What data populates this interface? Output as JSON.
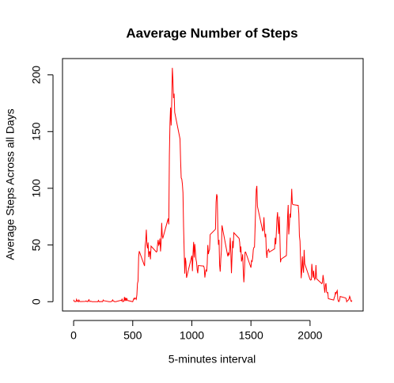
{
  "chart_data": {
    "type": "line",
    "title": "Aaverage Number of Steps",
    "x_label": "5-minutes interval",
    "y_label": "Average Steps Across all Days",
    "x": [
      0,
      5,
      10,
      15,
      20,
      25,
      30,
      35,
      40,
      45,
      50,
      55,
      100,
      105,
      110,
      115,
      120,
      125,
      130,
      135,
      140,
      145,
      150,
      155,
      200,
      205,
      210,
      215,
      220,
      225,
      230,
      235,
      240,
      245,
      250,
      255,
      300,
      305,
      310,
      315,
      320,
      325,
      330,
      335,
      340,
      345,
      350,
      355,
      400,
      405,
      410,
      415,
      420,
      425,
      430,
      435,
      440,
      445,
      450,
      455,
      500,
      505,
      510,
      515,
      520,
      525,
      530,
      535,
      540,
      545,
      550,
      555,
      600,
      605,
      610,
      615,
      620,
      625,
      630,
      635,
      640,
      645,
      650,
      655,
      700,
      705,
      710,
      715,
      720,
      725,
      730,
      735,
      740,
      745,
      750,
      755,
      800,
      805,
      810,
      815,
      820,
      825,
      830,
      835,
      840,
      845,
      850,
      855,
      900,
      905,
      910,
      915,
      920,
      925,
      930,
      935,
      940,
      945,
      950,
      955,
      1000,
      1005,
      1010,
      1015,
      1020,
      1025,
      1030,
      1035,
      1040,
      1045,
      1050,
      1055,
      1100,
      1105,
      1110,
      1115,
      1120,
      1125,
      1130,
      1135,
      1140,
      1145,
      1150,
      1155,
      1200,
      1205,
      1210,
      1215,
      1220,
      1225,
      1230,
      1235,
      1240,
      1245,
      1250,
      1255,
      1300,
      1305,
      1310,
      1315,
      1320,
      1325,
      1330,
      1335,
      1340,
      1345,
      1350,
      1355,
      1400,
      1405,
      1410,
      1415,
      1420,
      1425,
      1430,
      1435,
      1440,
      1445,
      1450,
      1455,
      1500,
      1505,
      1510,
      1515,
      1520,
      1525,
      1530,
      1535,
      1540,
      1545,
      1550,
      1555,
      1600,
      1605,
      1610,
      1615,
      1620,
      1625,
      1630,
      1635,
      1640,
      1645,
      1650,
      1655,
      1700,
      1705,
      1710,
      1715,
      1720,
      1725,
      1730,
      1735,
      1740,
      1745,
      1750,
      1755,
      1800,
      1805,
      1810,
      1815,
      1820,
      1825,
      1830,
      1835,
      1840,
      1845,
      1850,
      1855,
      1900,
      1905,
      1910,
      1915,
      1920,
      1925,
      1930,
      1935,
      1940,
      1945,
      1950,
      1955,
      2000,
      2005,
      2010,
      2015,
      2020,
      2025,
      2030,
      2035,
      2040,
      2045,
      2050,
      2055,
      2100,
      2105,
      2110,
      2115,
      2120,
      2125,
      2130,
      2135,
      2140,
      2145,
      2150,
      2155,
      2200,
      2205,
      2210,
      2215,
      2220,
      2225,
      2230,
      2235,
      2240,
      2245,
      2250,
      2255,
      2300,
      2305,
      2310,
      2315,
      2320,
      2325,
      2330,
      2335,
      2340,
      2345,
      2350,
      2355
    ],
    "series": [
      {
        "color": "#ff0000",
        "values": [
          1.7,
          0.3,
          0.1,
          0.2,
          0.1,
          2.1,
          0.5,
          0.9,
          0,
          1.5,
          0.3,
          0.1,
          0.3,
          0.7,
          0.2,
          0.3,
          0,
          1.1,
          1.8,
          0.2,
          0.2,
          0.4,
          0.3,
          0,
          0,
          0,
          1.1,
          0,
          0,
          0.1,
          0,
          0.2,
          0,
          0,
          1.5,
          0.9,
          0,
          0,
          0,
          0,
          0.2,
          0.6,
          1.6,
          0.6,
          0.5,
          0.1,
          0,
          0,
          1.2,
          0.9,
          2.6,
          0,
          0.3,
          0.4,
          4.1,
          0.7,
          3.5,
          0.8,
          3.1,
          1.1,
          0,
          1.6,
          3,
          2.2,
          3.3,
          3,
          2.1,
          6.1,
          16,
          18.3,
          39.5,
          44.5,
          31.5,
          49.3,
          53.8,
          63.5,
          50,
          47.1,
          52.2,
          39.3,
          44,
          44.2,
          37.4,
          49,
          43.8,
          44.4,
          50.5,
          54.5,
          49.9,
          51,
          55.7,
          44.3,
          52.3,
          69.5,
          57.8,
          56.2,
          73.4,
          68.2,
          129.4,
          157.5,
          171.2,
          155.4,
          177.3,
          206.2,
          195.9,
          179.6,
          183.4,
          167,
          143.5,
          124,
          109.1,
          108.1,
          103.7,
          96,
          66.2,
          45.2,
          24.8,
          38.8,
          35,
          21.1,
          40.6,
          27,
          42.4,
          52.7,
          38.9,
          50.8,
          44.3,
          37.4,
          34.7,
          28.3,
          25.1,
          31.9,
          31.4,
          29.7,
          21.3,
          25.5,
          28.4,
          26.5,
          33.4,
          50,
          42,
          44.6,
          46,
          59.2,
          63.9,
          87.7,
          94.8,
          92.8,
          63.4,
          50.2,
          54.5,
          32.4,
          26.5,
          37.7,
          45.1,
          67.3,
          42.3,
          39.9,
          43.3,
          41,
          46.2,
          56.4,
          42.8,
          25.1,
          40,
          53.5,
          47.3,
          60.8,
          55.8,
          52,
          43.6,
          48.7,
          35.5,
          37.5,
          41.8,
          27.5,
          17.1,
          26.1,
          43.6,
          43.8,
          30,
          36.1,
          35.5,
          38.8,
          46,
          47.8,
          48.1,
          65.3,
          82.9,
          98.7,
          102.1,
          84,
          62.1,
          64.1,
          74.5,
          63.2,
          56.9,
          59.8,
          43.9,
          38.6,
          44.7,
          45.5,
          46.2,
          43.7,
          46.6,
          56.3,
          50.7,
          61.2,
          72.7,
          78.9,
          68.9,
          59.7,
          75.1,
          56.5,
          34.8,
          37.5,
          40.7,
          58,
          74.7,
          85.3,
          59.3,
          67.8,
          77.7,
          74.2,
          85.3,
          99.5,
          86.6,
          85.6,
          84.9,
          77.8,
          58,
          53.4,
          36.3,
          20.7,
          27.4,
          40,
          30.2,
          25.5,
          45.7,
          33.5,
          19.6,
          19,
          19.3,
          33.3,
          26.8,
          21.2,
          27.3,
          21.3,
          19.5,
          21.3,
          32.3,
          20.2,
          15.9,
          17.2,
          23.5,
          19.2,
          12.5,
          8,
          14.7,
          16.3,
          8.7,
          7.8,
          8.1,
          2.6,
          1.5,
          3.7,
          4.8,
          8.5,
          7.1,
          8.7,
          9.8,
          2.2,
          0.3,
          0.1,
          1.6,
          4.6,
          3.3,
          2.8,
          0,
          0.8,
          1,
          1.6,
          2.6,
          4.7,
          3.3,
          0.6,
          0.2,
          1.1
        ]
      }
    ],
    "xlim": [
      -94.2,
      2449.2
    ],
    "ylim": [
      -8.2,
      214.4
    ],
    "xticks": [
      0,
      500,
      1000,
      1500,
      2000
    ],
    "yticks": [
      0,
      50,
      100,
      150,
      200
    ]
  }
}
